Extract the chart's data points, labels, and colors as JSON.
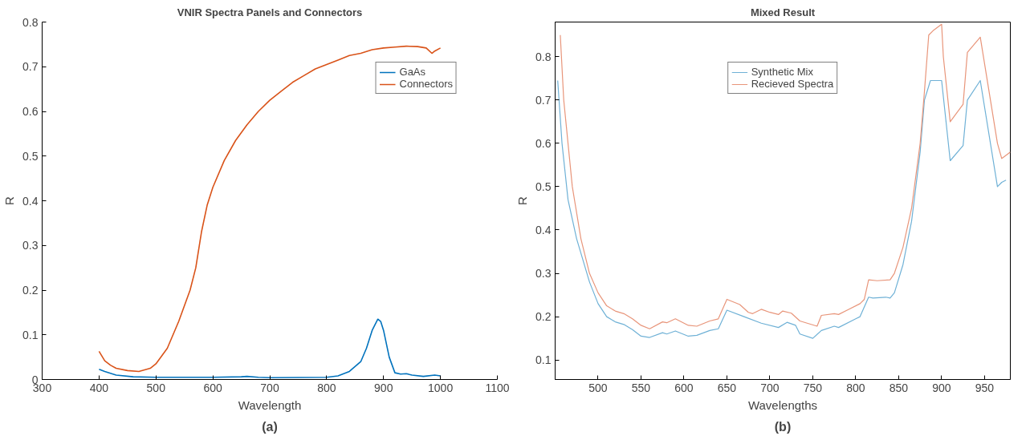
{
  "chart_data": [
    {
      "type": "line",
      "title": "VNIR Spectra Panels and Connectors",
      "xlabel": "Wavelength",
      "ylabel": "R",
      "xlim": [
        300,
        1100
      ],
      "ylim": [
        0,
        0.8
      ],
      "xticks": [
        300,
        400,
        500,
        600,
        700,
        800,
        900,
        1000,
        1100
      ],
      "yticks": [
        0,
        0.1,
        0.2,
        0.3,
        0.4,
        0.5,
        0.6,
        0.7,
        0.8
      ],
      "grid": false,
      "legend": "top right",
      "annotations": [
        "(a)"
      ],
      "series": [
        {
          "name": "GaAs",
          "color": "#0072bd",
          "x": [
            400,
            410,
            430,
            460,
            500,
            600,
            650,
            660,
            680,
            700,
            800,
            820,
            840,
            860,
            870,
            880,
            890,
            895,
            900,
            910,
            920,
            930,
            940,
            950,
            970,
            990,
            1000
          ],
          "values": [
            0.023,
            0.018,
            0.01,
            0.006,
            0.005,
            0.005,
            0.006,
            0.007,
            0.005,
            0.004,
            0.005,
            0.008,
            0.018,
            0.04,
            0.07,
            0.11,
            0.135,
            0.13,
            0.11,
            0.05,
            0.015,
            0.012,
            0.013,
            0.01,
            0.007,
            0.01,
            0.008
          ]
        },
        {
          "name": "Connectors",
          "color": "#d95319",
          "x": [
            400,
            410,
            420,
            430,
            450,
            470,
            490,
            500,
            520,
            540,
            560,
            570,
            580,
            590,
            600,
            620,
            640,
            660,
            680,
            700,
            720,
            740,
            760,
            780,
            800,
            820,
            840,
            860,
            880,
            900,
            920,
            940,
            960,
            975,
            985,
            990,
            1000
          ],
          "values": [
            0.063,
            0.042,
            0.032,
            0.025,
            0.02,
            0.018,
            0.025,
            0.035,
            0.07,
            0.13,
            0.2,
            0.25,
            0.33,
            0.39,
            0.43,
            0.49,
            0.535,
            0.57,
            0.6,
            0.625,
            0.645,
            0.665,
            0.68,
            0.695,
            0.705,
            0.715,
            0.725,
            0.73,
            0.738,
            0.742,
            0.744,
            0.746,
            0.745,
            0.742,
            0.73,
            0.735,
            0.742
          ]
        }
      ]
    },
    {
      "type": "line",
      "title": "Mixed Result",
      "xlabel": "Wavelengths",
      "ylabel": "R",
      "xlim": [
        450,
        980
      ],
      "ylim": [
        0.055,
        0.88
      ],
      "xticks": [
        500,
        550,
        600,
        650,
        700,
        750,
        800,
        850,
        900,
        950
      ],
      "yticks": [
        0.1,
        0.2,
        0.3,
        0.4,
        0.5,
        0.6,
        0.7,
        0.8
      ],
      "grid": false,
      "legend": "top",
      "annotations": [
        "(b)"
      ],
      "series": [
        {
          "name": "Synthetic Mix",
          "color": "#6fb1d6",
          "x": [
            453,
            458,
            465,
            475,
            490,
            500,
            510,
            520,
            530,
            540,
            550,
            560,
            575,
            580,
            590,
            605,
            615,
            630,
            640,
            650,
            670,
            690,
            710,
            720,
            730,
            735,
            750,
            760,
            775,
            780,
            800,
            805,
            815,
            820,
            835,
            840,
            845,
            855,
            865,
            875,
            880,
            887,
            900,
            910,
            925,
            930,
            945,
            965,
            970,
            975
          ],
          "values": [
            0.745,
            0.6,
            0.47,
            0.38,
            0.28,
            0.23,
            0.2,
            0.188,
            0.182,
            0.17,
            0.155,
            0.152,
            0.163,
            0.16,
            0.167,
            0.155,
            0.157,
            0.168,
            0.172,
            0.215,
            0.2,
            0.185,
            0.175,
            0.187,
            0.18,
            0.16,
            0.15,
            0.168,
            0.178,
            0.175,
            0.195,
            0.2,
            0.245,
            0.243,
            0.245,
            0.243,
            0.255,
            0.32,
            0.42,
            0.58,
            0.7,
            0.745,
            0.745,
            0.56,
            0.595,
            0.7,
            0.745,
            0.5,
            0.51,
            0.515
          ]
        },
        {
          "name": "Recieved Spectra",
          "color": "#e8957a",
          "x": [
            456,
            460,
            470,
            480,
            490,
            500,
            510,
            520,
            530,
            540,
            550,
            560,
            575,
            580,
            590,
            605,
            615,
            630,
            640,
            650,
            665,
            675,
            680,
            690,
            700,
            710,
            715,
            725,
            735,
            755,
            760,
            775,
            780,
            790,
            805,
            810,
            815,
            825,
            840,
            845,
            855,
            865,
            875,
            880,
            885,
            890,
            900,
            902,
            910,
            925,
            930,
            945,
            965,
            970,
            980
          ],
          "values": [
            0.85,
            0.7,
            0.5,
            0.38,
            0.3,
            0.255,
            0.225,
            0.213,
            0.207,
            0.195,
            0.18,
            0.172,
            0.188,
            0.186,
            0.195,
            0.18,
            0.178,
            0.19,
            0.195,
            0.24,
            0.228,
            0.21,
            0.207,
            0.217,
            0.21,
            0.205,
            0.213,
            0.208,
            0.19,
            0.178,
            0.203,
            0.207,
            0.205,
            0.215,
            0.23,
            0.24,
            0.285,
            0.283,
            0.285,
            0.3,
            0.36,
            0.45,
            0.6,
            0.72,
            0.85,
            0.86,
            0.875,
            0.8,
            0.65,
            0.69,
            0.81,
            0.845,
            0.6,
            0.565,
            0.58
          ]
        }
      ]
    }
  ]
}
